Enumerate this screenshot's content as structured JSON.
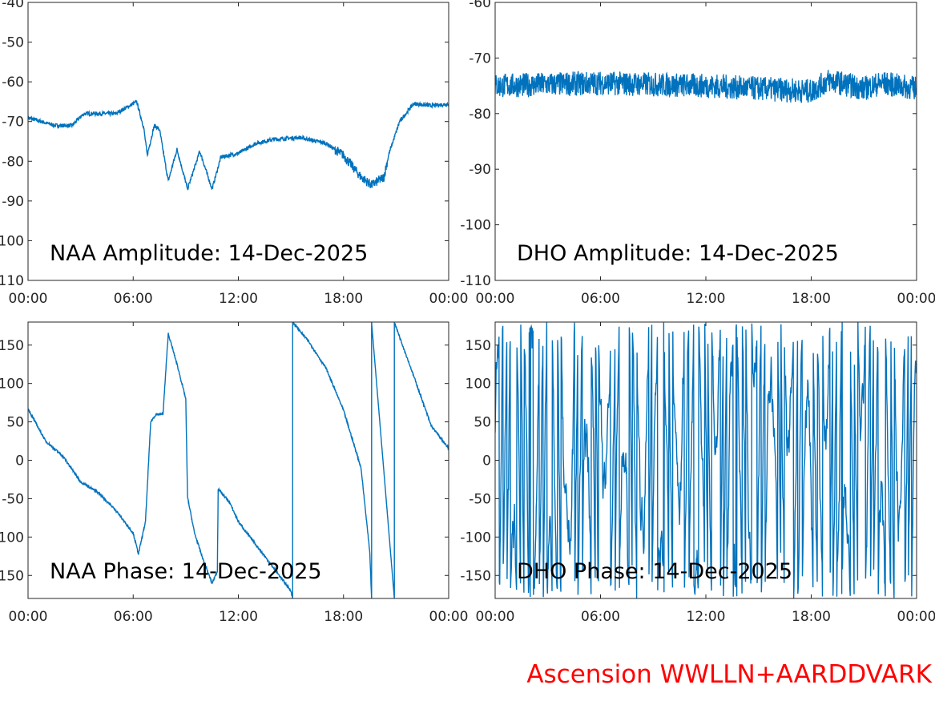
{
  "footer": "Ascension WWLLN+AARDDVARK",
  "colors": {
    "line": "#0072bd",
    "footer": "#ff0000",
    "axis": "#262626"
  },
  "chart_data": [
    {
      "type": "line",
      "title": "NAA Amplitude: 14-Dec-2025",
      "xlim": [
        0,
        24
      ],
      "ylim": [
        -110,
        -40
      ],
      "xticks": [
        "00:00",
        "06:00",
        "12:00",
        "18:00",
        "00:00"
      ],
      "yticks": [
        -40,
        -50,
        -60,
        -70,
        -80,
        -90,
        -100,
        -110
      ],
      "x": [
        0,
        1.5,
        2.5,
        3.2,
        5,
        6.2,
        6.6,
        6.8,
        7.2,
        7.5,
        8,
        8.5,
        9.1,
        9.8,
        10.5,
        11,
        12,
        13,
        14,
        15.5,
        17,
        18,
        19,
        19.6,
        20.3,
        20.6,
        21.2,
        22,
        23,
        24
      ],
      "y": [
        -69,
        -71,
        -71,
        -68,
        -68,
        -65,
        -71.5,
        -78.5,
        -71,
        -72,
        -85,
        -77,
        -87,
        -77.5,
        -87,
        -79,
        -78,
        -75.5,
        -74.5,
        -74,
        -75.5,
        -78.5,
        -84,
        -86,
        -84,
        -78,
        -70,
        -65.5,
        -66,
        -65.6
      ]
    },
    {
      "type": "line",
      "title": "DHO Amplitude: 14-Dec-2025",
      "xlim": [
        0,
        24
      ],
      "ylim": [
        -110,
        -60
      ],
      "xticks": [
        "00:00",
        "06:00",
        "12:00",
        "18:00",
        "00:00"
      ],
      "yticks": [
        -60,
        -70,
        -80,
        -90,
        -100,
        -110
      ],
      "x": [
        0,
        6,
        12,
        15,
        18,
        19,
        21,
        22,
        24
      ],
      "y": [
        -75,
        -74.5,
        -75,
        -75.5,
        -76,
        -74,
        -75.5,
        -74.5,
        -75.5
      ]
    },
    {
      "type": "line",
      "title": "NAA Phase: 14-Dec-2025",
      "xlim": [
        0,
        24
      ],
      "ylim": [
        -180,
        180
      ],
      "xticks": [
        "00:00",
        "06:00",
        "12:00",
        "18:00",
        "00:00"
      ],
      "yticks": [
        150,
        100,
        50,
        0,
        -50,
        -100,
        -150
      ],
      "x": [
        0,
        1,
        2,
        3,
        4,
        5,
        6,
        6.3,
        6.7,
        7,
        7.3,
        7.7,
        8,
        8.5,
        9,
        9.1,
        9.5,
        10,
        10.5,
        10.8,
        10.85,
        11.5,
        12,
        13,
        14,
        15,
        15.1,
        15.1,
        16,
        17,
        18,
        19,
        19.5,
        19.6,
        19.6,
        20.9,
        20.9,
        22,
        23,
        24
      ],
      "y": [
        67,
        25,
        5,
        -28,
        -42,
        -65,
        -95,
        -122,
        -80,
        50,
        60,
        60,
        165,
        125,
        80,
        -48,
        -95,
        -130,
        -160,
        -145,
        -37,
        -55,
        -80,
        -110,
        -140,
        -170,
        -180,
        180,
        155,
        120,
        65,
        -10,
        -120,
        -180,
        180,
        -180,
        180,
        110,
        45,
        15
      ]
    },
    {
      "type": "line",
      "title": "DHO Phase: 14-Dec-2025",
      "xlim": [
        0,
        24
      ],
      "ylim": [
        -180,
        180
      ],
      "xticks": [
        "00:00",
        "06:00",
        "12:00",
        "18:00",
        "00:00"
      ],
      "yticks": [
        150,
        100,
        50,
        0,
        -50,
        -100,
        -150
      ],
      "note_wrapped": true
    }
  ]
}
